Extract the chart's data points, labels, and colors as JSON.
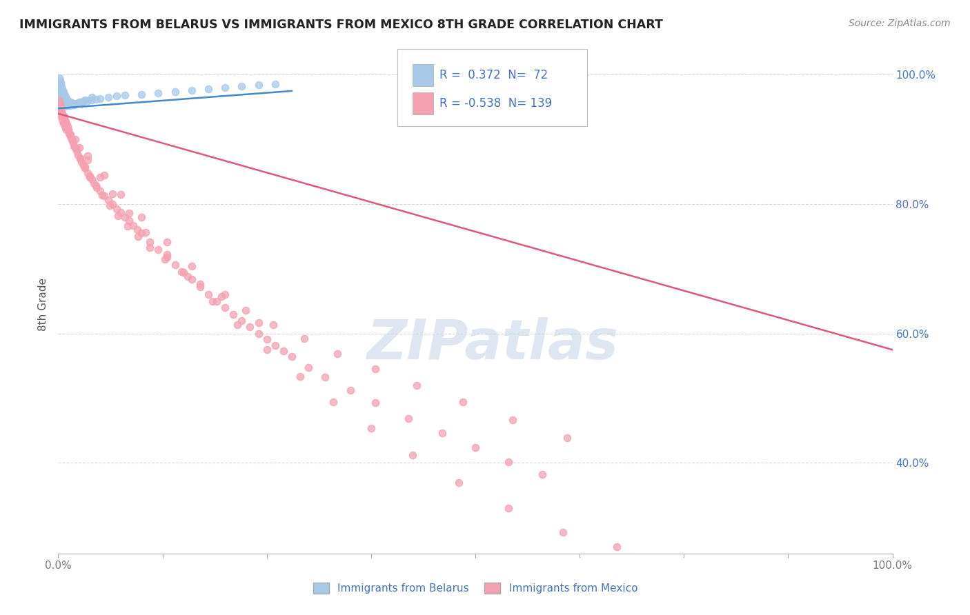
{
  "title": "IMMIGRANTS FROM BELARUS VS IMMIGRANTS FROM MEXICO 8TH GRADE CORRELATION CHART",
  "source": "Source: ZipAtlas.com",
  "ylabel": "8th Grade",
  "legend_blue_R": "0.372",
  "legend_blue_N": "72",
  "legend_pink_R": "-0.538",
  "legend_pink_N": "139",
  "blue_scatter_color": "#a8c8e8",
  "blue_line_color": "#4488cc",
  "pink_scatter_color": "#f4a0b0",
  "pink_line_color": "#e05878",
  "watermark": "ZIPatlas",
  "watermark_color": "#c8d8e8",
  "ytick_labels": [
    "100.0%",
    "80.0%",
    "60.0%",
    "40.0%"
  ],
  "ytick_values": [
    1.0,
    0.8,
    0.6,
    0.4
  ],
  "grid_color": "#cccccc",
  "blue_scatter_x": [
    0.001,
    0.001,
    0.002,
    0.002,
    0.002,
    0.003,
    0.003,
    0.003,
    0.004,
    0.004,
    0.004,
    0.005,
    0.005,
    0.005,
    0.006,
    0.006,
    0.007,
    0.007,
    0.008,
    0.008,
    0.009,
    0.009,
    0.01,
    0.01,
    0.011,
    0.012,
    0.013,
    0.014,
    0.015,
    0.016,
    0.017,
    0.018,
    0.019,
    0.02,
    0.022,
    0.025,
    0.028,
    0.03,
    0.035,
    0.04,
    0.045,
    0.05,
    0.06,
    0.07,
    0.08,
    0.1,
    0.12,
    0.14,
    0.16,
    0.18,
    0.2,
    0.22,
    0.24,
    0.26,
    0.001,
    0.002,
    0.003,
    0.003,
    0.004,
    0.005,
    0.006,
    0.007,
    0.008,
    0.009,
    0.01,
    0.012,
    0.015,
    0.018,
    0.022,
    0.027,
    0.032,
    0.04
  ],
  "blue_scatter_y": [
    0.995,
    0.985,
    0.992,
    0.98,
    0.97,
    0.988,
    0.975,
    0.965,
    0.982,
    0.972,
    0.96,
    0.978,
    0.968,
    0.958,
    0.974,
    0.964,
    0.97,
    0.96,
    0.968,
    0.958,
    0.965,
    0.955,
    0.963,
    0.953,
    0.961,
    0.959,
    0.957,
    0.958,
    0.956,
    0.957,
    0.955,
    0.956,
    0.954,
    0.955,
    0.956,
    0.958,
    0.957,
    0.959,
    0.96,
    0.961,
    0.962,
    0.963,
    0.965,
    0.967,
    0.969,
    0.97,
    0.972,
    0.974,
    0.976,
    0.978,
    0.98,
    0.982,
    0.984,
    0.986,
    0.988,
    0.983,
    0.978,
    0.973,
    0.969,
    0.964,
    0.96,
    0.957,
    0.955,
    0.953,
    0.952,
    0.952,
    0.953,
    0.954,
    0.956,
    0.958,
    0.961,
    0.965
  ],
  "pink_scatter_x": [
    0.001,
    0.001,
    0.002,
    0.002,
    0.003,
    0.003,
    0.004,
    0.004,
    0.005,
    0.005,
    0.006,
    0.006,
    0.007,
    0.007,
    0.008,
    0.008,
    0.009,
    0.009,
    0.01,
    0.01,
    0.011,
    0.012,
    0.013,
    0.014,
    0.015,
    0.016,
    0.017,
    0.018,
    0.019,
    0.02,
    0.022,
    0.024,
    0.026,
    0.028,
    0.03,
    0.032,
    0.035,
    0.038,
    0.04,
    0.043,
    0.046,
    0.05,
    0.055,
    0.06,
    0.065,
    0.07,
    0.075,
    0.08,
    0.085,
    0.09,
    0.095,
    0.1,
    0.11,
    0.12,
    0.13,
    0.14,
    0.15,
    0.16,
    0.17,
    0.18,
    0.19,
    0.2,
    0.21,
    0.22,
    0.23,
    0.24,
    0.25,
    0.26,
    0.27,
    0.28,
    0.3,
    0.32,
    0.35,
    0.38,
    0.42,
    0.46,
    0.5,
    0.54,
    0.58,
    0.002,
    0.005,
    0.008,
    0.012,
    0.016,
    0.021,
    0.026,
    0.032,
    0.038,
    0.045,
    0.053,
    0.062,
    0.072,
    0.083,
    0.096,
    0.11,
    0.128,
    0.148,
    0.17,
    0.196,
    0.225,
    0.258,
    0.295,
    0.335,
    0.38,
    0.43,
    0.485,
    0.545,
    0.61,
    0.015,
    0.025,
    0.035,
    0.05,
    0.065,
    0.085,
    0.105,
    0.13,
    0.155,
    0.185,
    0.215,
    0.25,
    0.29,
    0.33,
    0.375,
    0.425,
    0.48,
    0.54,
    0.605,
    0.67,
    0.01,
    0.02,
    0.035,
    0.055,
    0.075,
    0.1,
    0.13,
    0.16,
    0.2,
    0.24
  ],
  "pink_scatter_y": [
    0.96,
    0.95,
    0.955,
    0.945,
    0.95,
    0.94,
    0.945,
    0.935,
    0.94,
    0.93,
    0.935,
    0.925,
    0.935,
    0.925,
    0.93,
    0.92,
    0.928,
    0.918,
    0.925,
    0.915,
    0.92,
    0.915,
    0.91,
    0.908,
    0.905,
    0.9,
    0.898,
    0.895,
    0.89,
    0.888,
    0.882,
    0.876,
    0.87,
    0.865,
    0.86,
    0.855,
    0.848,
    0.842,
    0.838,
    0.832,
    0.826,
    0.82,
    0.813,
    0.806,
    0.8,
    0.793,
    0.787,
    0.78,
    0.774,
    0.767,
    0.761,
    0.755,
    0.742,
    0.73,
    0.718,
    0.706,
    0.695,
    0.684,
    0.672,
    0.661,
    0.65,
    0.64,
    0.63,
    0.62,
    0.61,
    0.6,
    0.591,
    0.582,
    0.573,
    0.565,
    0.548,
    0.533,
    0.512,
    0.493,
    0.469,
    0.446,
    0.424,
    0.402,
    0.382,
    0.952,
    0.94,
    0.928,
    0.914,
    0.9,
    0.886,
    0.872,
    0.858,
    0.844,
    0.829,
    0.814,
    0.798,
    0.782,
    0.766,
    0.75,
    0.733,
    0.715,
    0.696,
    0.677,
    0.657,
    0.636,
    0.614,
    0.592,
    0.569,
    0.545,
    0.52,
    0.494,
    0.467,
    0.439,
    0.908,
    0.888,
    0.868,
    0.842,
    0.816,
    0.786,
    0.756,
    0.722,
    0.688,
    0.65,
    0.614,
    0.575,
    0.534,
    0.494,
    0.454,
    0.412,
    0.37,
    0.33,
    0.293,
    0.27,
    0.92,
    0.9,
    0.875,
    0.845,
    0.815,
    0.78,
    0.742,
    0.704,
    0.66,
    0.617
  ],
  "blue_trend_x": [
    0.0,
    0.28
  ],
  "blue_trend_y": [
    0.948,
    0.975
  ],
  "pink_trend_x": [
    0.0,
    1.0
  ],
  "pink_trend_y": [
    0.94,
    0.575
  ],
  "xlim": [
    0.0,
    1.0
  ],
  "ylim": [
    0.26,
    1.03
  ],
  "dot_size": 55,
  "dot_alpha": 0.75,
  "dot_linewidth": 1.0,
  "line_width": 1.8,
  "legend_text_color": "#4472c4",
  "axis_label_color": "#555555",
  "tick_color": "#777777",
  "spine_color": "#aaaaaa"
}
